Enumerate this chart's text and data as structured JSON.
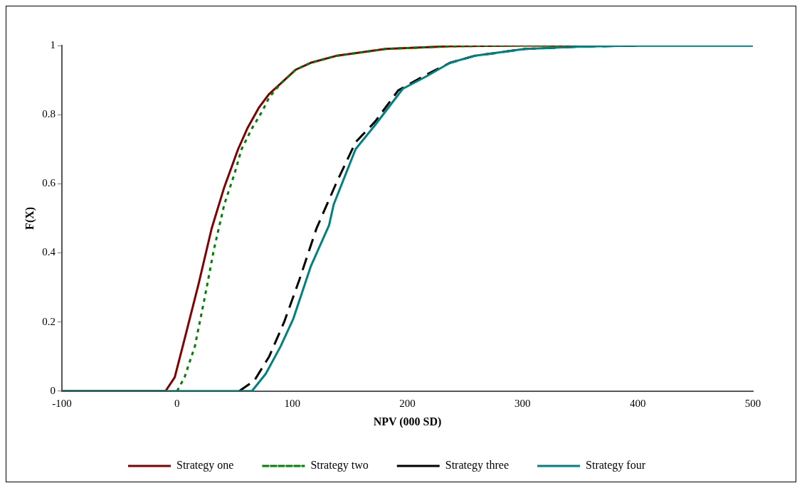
{
  "chart_data": {
    "type": "line",
    "xlabel": "NPV (000 SD)",
    "ylabel": "F(X)",
    "xlim": [
      -100,
      500
    ],
    "xticks": [
      -100,
      0,
      100,
      200,
      300,
      400,
      500
    ],
    "ylim": [
      0,
      1
    ],
    "yticks": [
      0,
      0.2,
      0.4,
      0.6,
      0.8,
      1
    ],
    "grid": false,
    "legend": "bottom",
    "marker": "none",
    "series": [
      {
        "name": "Strategy one",
        "color": "#800000",
        "line_style": "solid",
        "x": [
          -100,
          -10,
          -2,
          6.5,
          18.7,
          30,
          41,
          53,
          61,
          71,
          80,
          90,
          103,
          116,
          138,
          181,
          237,
          300,
          500
        ],
        "values": [
          0,
          0,
          0.04,
          0.15,
          0.31,
          0.47,
          0.59,
          0.7,
          0.76,
          0.82,
          0.86,
          0.89,
          0.93,
          0.95,
          0.97,
          0.99,
          0.998,
          1,
          1
        ]
      },
      {
        "name": "Strategy two",
        "color": "#008000",
        "line_style": "dotted",
        "x": [
          0,
          6.5,
          15.5,
          24,
          32,
          41,
          50,
          56,
          65,
          74,
          80,
          90,
          103,
          116,
          138,
          181,
          237,
          300,
          400
        ],
        "values": [
          0,
          0.04,
          0.13,
          0.27,
          0.41,
          0.54,
          0.63,
          0.7,
          0.76,
          0.81,
          0.85,
          0.89,
          0.93,
          0.95,
          0.97,
          0.99,
          0.998,
          1,
          1
        ]
      },
      {
        "name": "Strategy three",
        "color": "#000000",
        "line_style": "dashed",
        "x": [
          54,
          67,
          80,
          93,
          106,
          121,
          138,
          155,
          172,
          192,
          216,
          237,
          258,
          280,
          302,
          350,
          400
        ],
        "values": [
          0,
          0.03,
          0.1,
          0.2,
          0.32,
          0.47,
          0.6,
          0.72,
          0.78,
          0.87,
          0.915,
          0.95,
          0.97,
          0.98,
          0.99,
          0.997,
          1
        ]
      },
      {
        "name": "Strategy four",
        "color": "#008080",
        "line_style": "solid",
        "x": [
          -100,
          65,
          77,
          90,
          101,
          116,
          132,
          136,
          155,
          172,
          196,
          216,
          237,
          258,
          302,
          350,
          400,
          500
        ],
        "values": [
          0,
          0,
          0.05,
          0.13,
          0.21,
          0.36,
          0.48,
          0.54,
          0.7,
          0.77,
          0.875,
          0.91,
          0.95,
          0.97,
          0.99,
          0.997,
          1,
          1
        ]
      }
    ]
  }
}
